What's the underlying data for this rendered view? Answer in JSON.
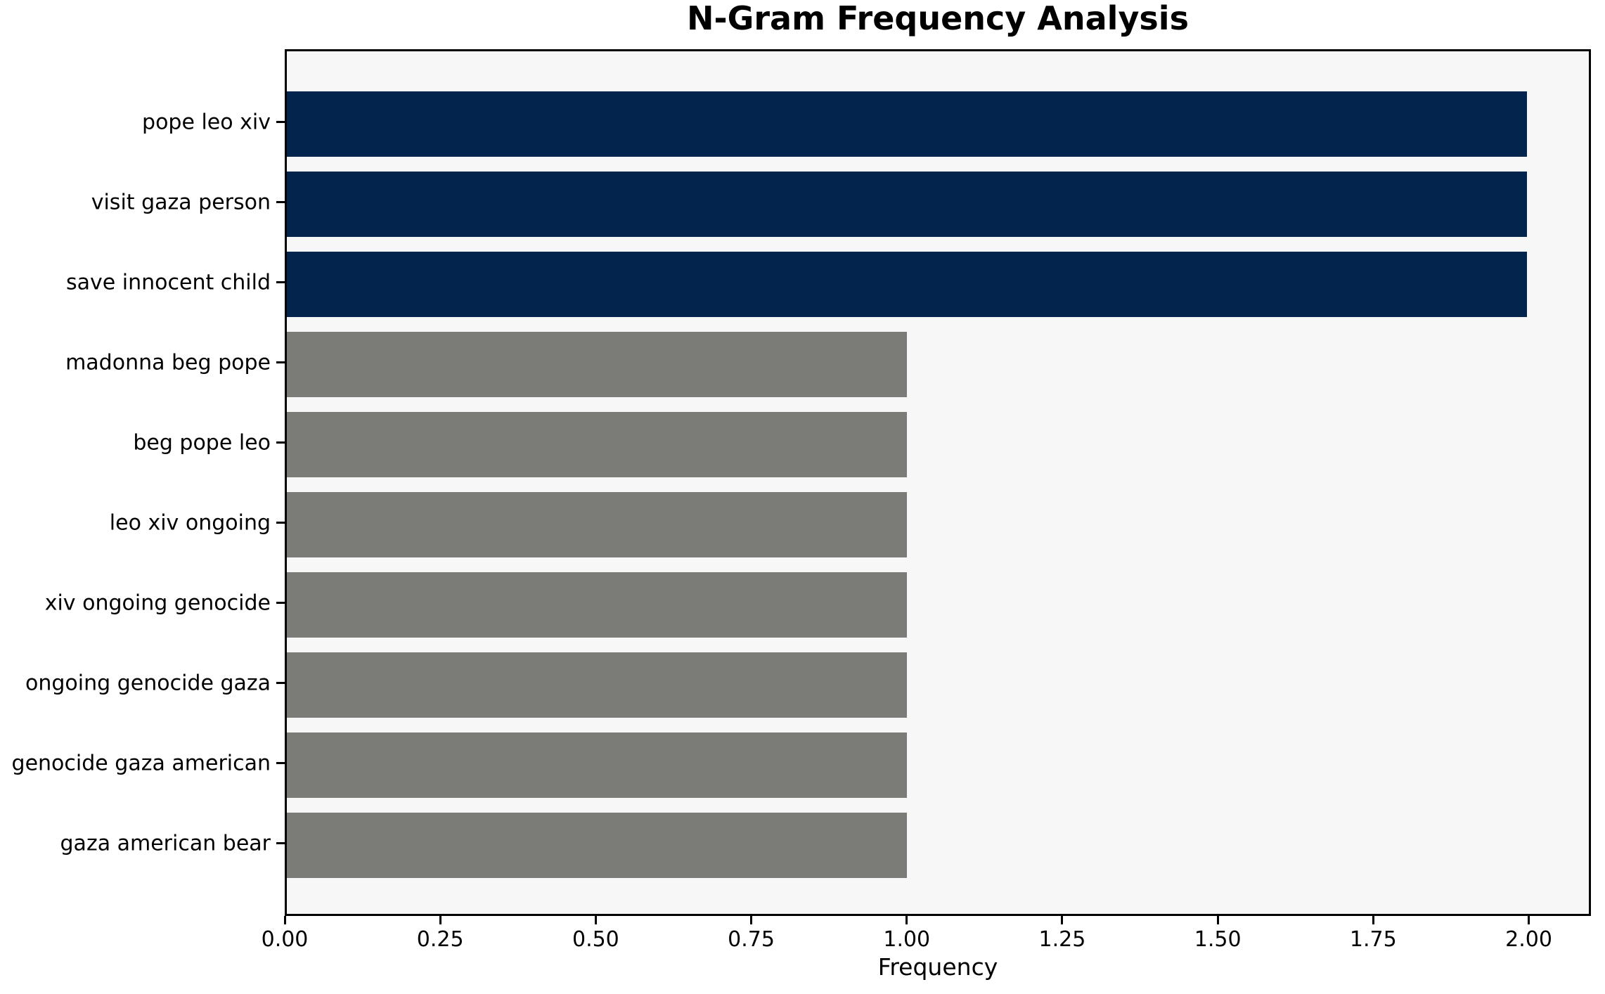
{
  "chart_data": {
    "type": "bar",
    "orientation": "horizontal",
    "title": "N-Gram Frequency Analysis",
    "xlabel": "Frequency",
    "ylabel": "",
    "categories": [
      "pope leo xiv",
      "visit gaza person",
      "save innocent child",
      "madonna beg pope",
      "beg pope leo",
      "leo xiv ongoing",
      "xiv ongoing genocide",
      "ongoing genocide gaza",
      "genocide gaza american",
      "gaza american bear"
    ],
    "values": [
      2,
      2,
      2,
      1,
      1,
      1,
      1,
      1,
      1,
      1
    ],
    "bar_colors": [
      "#03254d",
      "#03254d",
      "#03254d",
      "#7b7b78",
      "#7b7b78",
      "#7b7b78",
      "#7b7b78",
      "#7b7b78",
      "#7b7b78",
      "#7b7b78"
    ],
    "xlim": [
      0,
      2.1
    ],
    "xtick_values": [
      0,
      0.25,
      0.5,
      0.75,
      1.0,
      1.25,
      1.5,
      1.75,
      2.0
    ],
    "xtick_labels": [
      "0.00",
      "0.25",
      "0.50",
      "0.75",
      "1.00",
      "1.25",
      "1.50",
      "1.75",
      "2.00"
    ],
    "grid": false,
    "legend_position": "none",
    "colors": {
      "plot_background": "#f7f7f7",
      "figure_background": "#ffffff",
      "spine": "#000000",
      "text": "#000000"
    }
  }
}
